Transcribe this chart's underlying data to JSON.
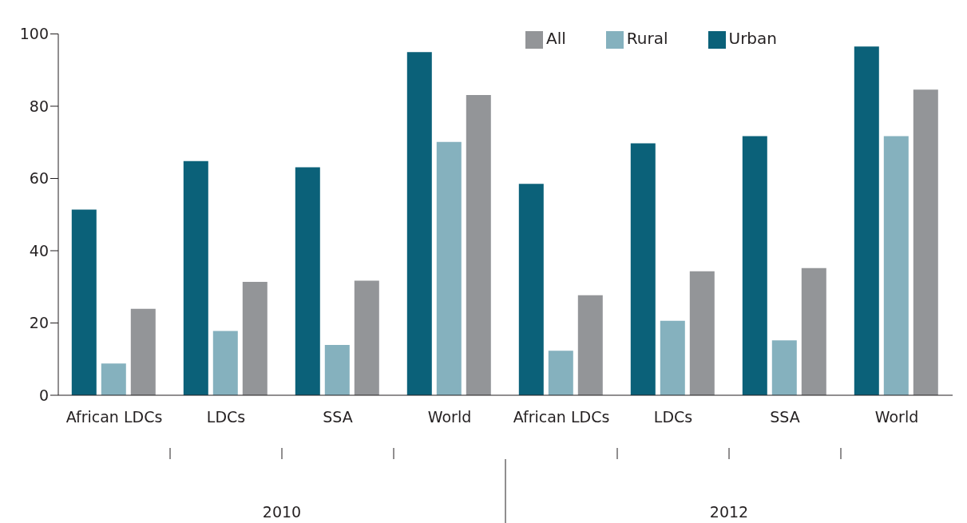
{
  "chart_data": {
    "type": "bar",
    "categories": [
      "African LDCs",
      "LDCs",
      "SSA",
      "World",
      "African LDCs",
      "LDCs",
      "SSA",
      "World"
    ],
    "series": [
      {
        "name": "Urban",
        "color": "#0b6179",
        "values": [
          51.4,
          64.8,
          63.1,
          95.0,
          58.5,
          69.7,
          71.7,
          96.5
        ]
      },
      {
        "name": "Rural",
        "color": "#85b1be",
        "values": [
          8.8,
          17.8,
          13.9,
          70.1,
          12.3,
          20.6,
          15.2,
          71.7
        ]
      },
      {
        "name": "All",
        "color": "#939598",
        "values": [
          23.9,
          31.4,
          31.7,
          83.1,
          27.7,
          34.3,
          35.2,
          84.6
        ]
      }
    ],
    "annotations": [
      "2010",
      "2012"
    ],
    "ylim": [
      0,
      100
    ],
    "yticks": [
      0,
      20,
      40,
      60,
      80,
      100
    ],
    "grid": false,
    "legend": "top right"
  }
}
